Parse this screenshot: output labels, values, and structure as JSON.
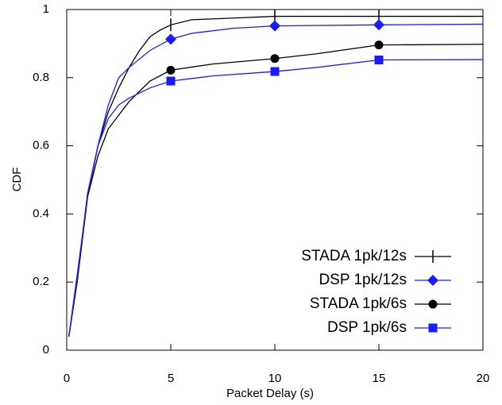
{
  "chart_data": {
    "type": "line",
    "xlabel": "Packet Delay (s)",
    "ylabel": "CDF",
    "xlim": [
      0,
      20
    ],
    "xticks": [
      0,
      5,
      10,
      15,
      20
    ],
    "ylim": [
      0,
      1
    ],
    "yticks": [
      0,
      0.2,
      0.4,
      0.6,
      0.8,
      1
    ],
    "legend": "lower right",
    "series": [
      {
        "name": "STADA 1pk/12s",
        "color": "#000000",
        "marker": "plus",
        "x": [
          0.1,
          0.5,
          1,
          1.5,
          2,
          2.5,
          3,
          3.5,
          4,
          4.5,
          5,
          6,
          8,
          10,
          15,
          20
        ],
        "values": [
          0.04,
          0.2,
          0.45,
          0.6,
          0.7,
          0.77,
          0.83,
          0.88,
          0.92,
          0.94,
          0.955,
          0.97,
          0.975,
          0.98,
          0.98,
          0.98
        ],
        "markers": {
          "x": [
            5,
            10,
            15
          ],
          "values": [
            0.955,
            0.98,
            0.98
          ]
        }
      },
      {
        "name": "DSP 1pk/12s",
        "color": "#1a1aff",
        "marker": "diamond",
        "x": [
          0.1,
          0.5,
          1,
          1.5,
          2,
          2.5,
          3,
          4,
          5,
          6,
          8,
          10,
          15,
          20
        ],
        "values": [
          0.04,
          0.22,
          0.45,
          0.6,
          0.72,
          0.8,
          0.83,
          0.88,
          0.913,
          0.93,
          0.945,
          0.952,
          0.955,
          0.957
        ],
        "markers": {
          "x": [
            5,
            10,
            15
          ],
          "values": [
            0.913,
            0.952,
            0.955
          ]
        }
      },
      {
        "name": "STADA 1pk/6s",
        "color": "#000000",
        "marker": "circle",
        "x": [
          0.1,
          0.5,
          1,
          1.5,
          2,
          3,
          4,
          5,
          7,
          10,
          12,
          15,
          20
        ],
        "values": [
          0.04,
          0.2,
          0.45,
          0.57,
          0.65,
          0.73,
          0.79,
          0.822,
          0.84,
          0.856,
          0.87,
          0.896,
          0.898
        ],
        "markers": {
          "x": [
            5,
            10,
            15
          ],
          "values": [
            0.822,
            0.856,
            0.896
          ]
        }
      },
      {
        "name": "DSP 1pk/6s",
        "color": "#1a1aff",
        "marker": "square",
        "x": [
          0.1,
          0.5,
          1,
          1.5,
          2,
          2.5,
          3,
          4,
          5,
          7,
          10,
          12,
          15,
          20
        ],
        "values": [
          0.04,
          0.21,
          0.46,
          0.6,
          0.68,
          0.72,
          0.74,
          0.77,
          0.79,
          0.805,
          0.818,
          0.83,
          0.852,
          0.853
        ],
        "markers": {
          "x": [
            5,
            10,
            15
          ],
          "values": [
            0.79,
            0.818,
            0.852
          ]
        }
      }
    ]
  }
}
